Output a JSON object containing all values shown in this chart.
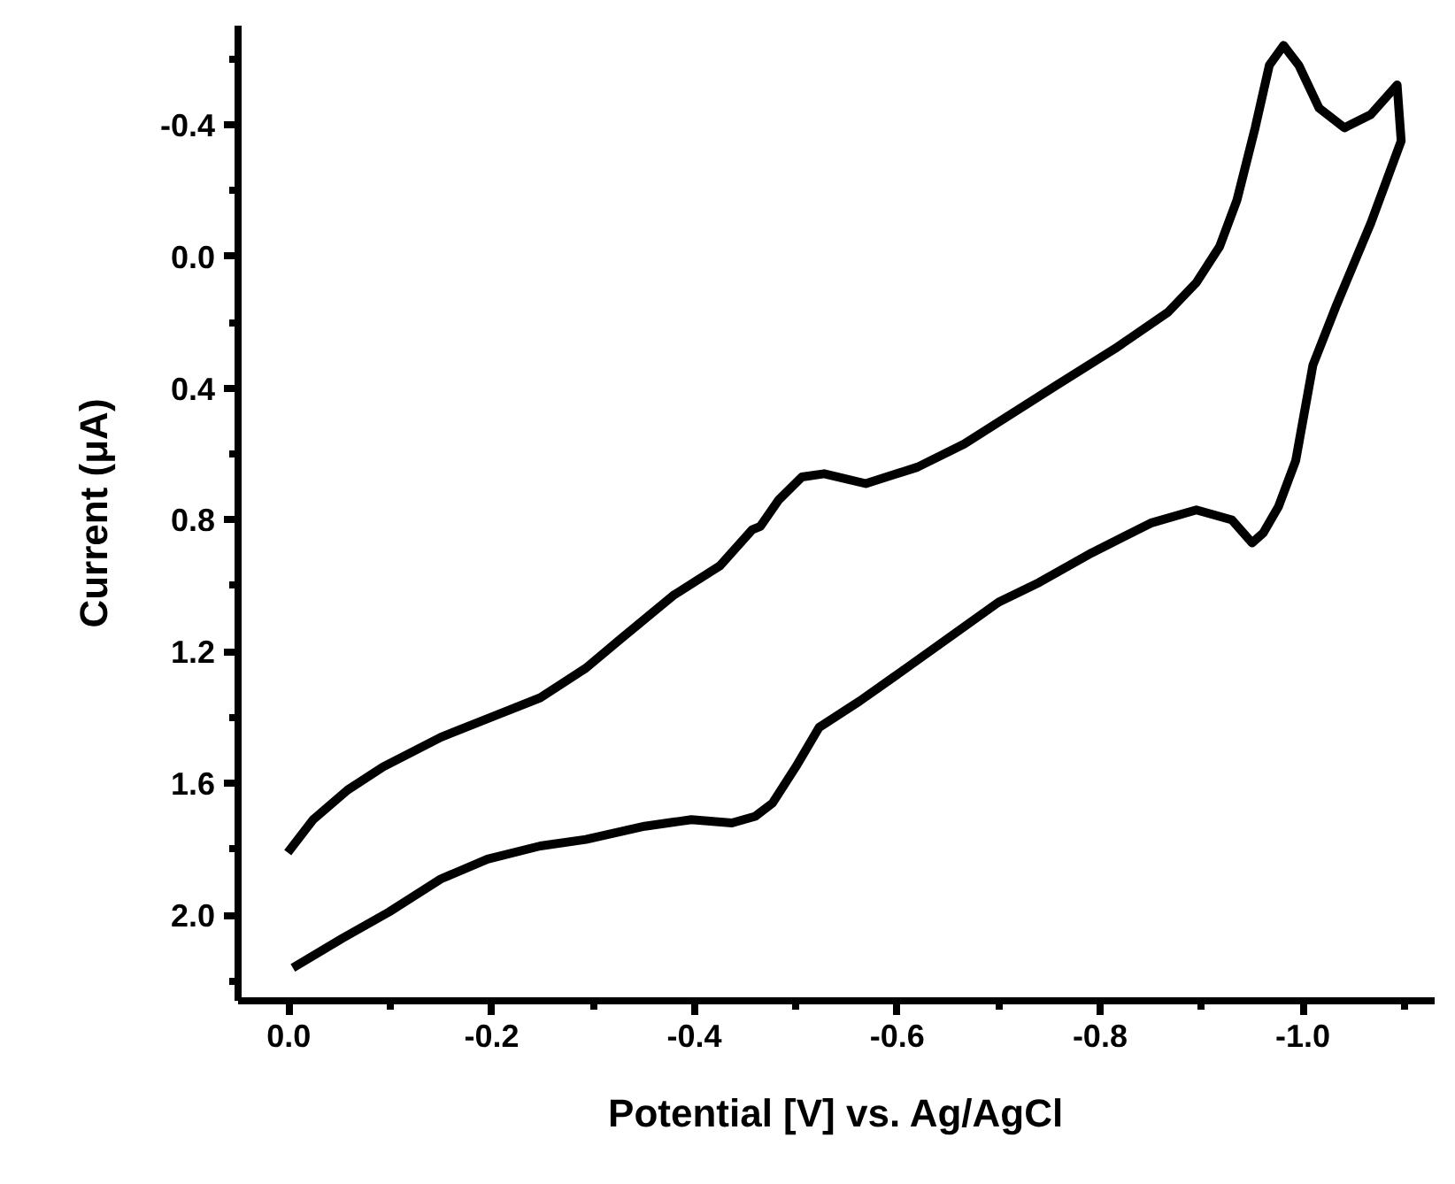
{
  "chart_data": {
    "type": "line",
    "xlabel": "Potential [V] vs. Ag/AgCl",
    "ylabel": "Current (μA)",
    "xlim": [
      0.05,
      -1.13
    ],
    "ylim": [
      2.26,
      -0.7
    ],
    "xticks": [
      {
        "value": 0,
        "label": "0.0"
      },
      {
        "value": -0.1,
        "label": null
      },
      {
        "value": -0.2,
        "label": "-0.2"
      },
      {
        "value": -0.3,
        "label": null
      },
      {
        "value": -0.4,
        "label": "-0.4"
      },
      {
        "value": -0.5,
        "label": null
      },
      {
        "value": -0.6,
        "label": "-0.6"
      },
      {
        "value": -0.7,
        "label": null
      },
      {
        "value": -0.8,
        "label": "-0.8"
      },
      {
        "value": -0.9,
        "label": null
      },
      {
        "value": -1.0,
        "label": "-1.0"
      },
      {
        "value": -1.1,
        "label": null
      }
    ],
    "yticks": [
      {
        "value": -0.6,
        "label": null
      },
      {
        "value": -0.4,
        "label": "-0.4"
      },
      {
        "value": -0.2,
        "label": null
      },
      {
        "value": 0,
        "label": "0.0"
      },
      {
        "value": 0.2,
        "label": null
      },
      {
        "value": 0.4,
        "label": "0.4"
      },
      {
        "value": 0.6,
        "label": null
      },
      {
        "value": 0.8,
        "label": "0.8"
      },
      {
        "value": 1.0,
        "label": null
      },
      {
        "value": 1.2,
        "label": "1.2"
      },
      {
        "value": 1.4,
        "label": null
      },
      {
        "value": 1.6,
        "label": "1.6"
      },
      {
        "value": 1.8,
        "label": null
      },
      {
        "value": 2.0,
        "label": "2.0"
      },
      {
        "value": 2.2,
        "label": null
      }
    ],
    "grid": false,
    "marker": "none",
    "line_style": "solid",
    "series": [
      {
        "color": "#000000",
        "x": [
          -0.004,
          -0.053,
          -0.099,
          -0.15,
          -0.196,
          -0.248,
          -0.293,
          -0.351,
          -0.397,
          -0.437,
          -0.46,
          -0.477,
          -0.5,
          -0.523,
          -0.563,
          -0.609,
          -0.7,
          -0.74,
          -0.792,
          -0.85,
          -0.895,
          -0.93,
          -0.95,
          -0.961,
          -0.976,
          -0.993,
          -1.01,
          -1.033,
          -1.067,
          -1.097,
          -1.093,
          -1.067,
          -1.041,
          -1.016,
          -0.996,
          -0.981,
          -0.967,
          -0.953,
          -0.935,
          -0.918,
          -0.895,
          -0.867,
          -0.815,
          -0.758,
          -0.712,
          -0.666,
          -0.62,
          -0.569,
          -0.528,
          -0.506,
          -0.483,
          -0.465,
          -0.457,
          -0.425,
          -0.379,
          -0.328,
          -0.293,
          -0.248,
          -0.207,
          -0.15,
          -0.093,
          -0.058,
          -0.024,
          0.001
        ],
        "values": [
          2.16,
          2.07,
          1.99,
          1.89,
          1.83,
          1.79,
          1.77,
          1.73,
          1.71,
          1.72,
          1.7,
          1.66,
          1.55,
          1.43,
          1.35,
          1.25,
          1.05,
          0.99,
          0.9,
          0.81,
          0.77,
          0.8,
          0.87,
          0.84,
          0.76,
          0.62,
          0.33,
          0.15,
          -0.1,
          -0.35,
          -0.52,
          -0.43,
          -0.39,
          -0.45,
          -0.58,
          -0.64,
          -0.58,
          -0.39,
          -0.17,
          -0.03,
          0.08,
          0.17,
          0.28,
          0.39,
          0.48,
          0.57,
          0.64,
          0.69,
          0.66,
          0.67,
          0.74,
          0.82,
          0.83,
          0.94,
          1.03,
          1.16,
          1.25,
          1.34,
          1.39,
          1.46,
          1.55,
          1.62,
          1.71,
          1.81
        ]
      }
    ]
  }
}
